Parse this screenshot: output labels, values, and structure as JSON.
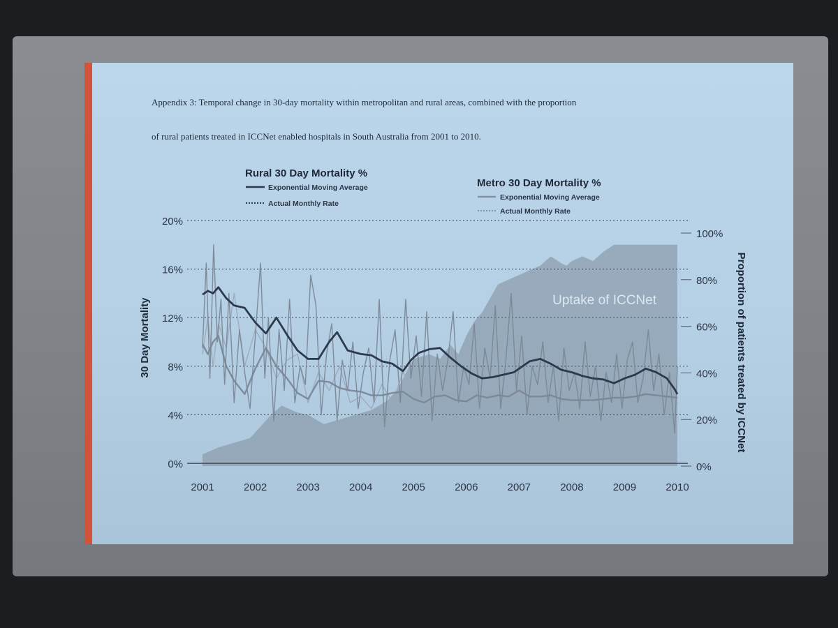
{
  "slide": {
    "caption_line1": "Appendix 3: Temporal change in 30-day mortality within metropolitan and rural areas, combined with the proportion",
    "caption_line2": "of rural patients treated in ICCNet enabled hospitals in South Australia from 2001 to 2010."
  },
  "colors": {
    "rural": "#2c3a4c",
    "metro": "#7a8796",
    "metro_light": "#9aa8b7",
    "uptake_area": "#8d9dad",
    "accent": "#d2533a",
    "slide_bg": "#b8d2e8"
  },
  "chart_data": {
    "type": "line",
    "title": "",
    "ylabel": "30 Day Mortality",
    "y2label": "Proportion of patients treated by ICCNet",
    "xlabel": "",
    "x_ticks": [
      "2001",
      "2002",
      "2003",
      "2004",
      "2005",
      "2006",
      "2007",
      "2008",
      "2009",
      "2010"
    ],
    "y_ticks": [
      "0%",
      "4%",
      "8%",
      "12%",
      "16%",
      "20%"
    ],
    "y2_ticks": [
      "0%",
      "20%",
      "40%",
      "60%",
      "80%",
      "100%"
    ],
    "ylim": [
      0,
      20
    ],
    "y2lim": [
      0,
      100
    ],
    "xlim": [
      2001.0,
      2010.0
    ],
    "grid": "dotted horizontal",
    "legend": {
      "rural_title": "Rural 30 Day Mortality %",
      "metro_title": "Metro 30 Day Mortality %",
      "ema_label": "Exponential Moving Average",
      "actual_label": "Actual Monthly Rate"
    },
    "area_label": "Uptake of ICCNet",
    "series": [
      {
        "name": "Rural Exponential Moving Average",
        "axis": "left",
        "x": [
          2001.0,
          2001.1,
          2001.2,
          2001.3,
          2001.45,
          2001.6,
          2001.8,
          2002.0,
          2002.2,
          2002.4,
          2002.6,
          2002.8,
          2003.0,
          2003.2,
          2003.4,
          2003.55,
          2003.75,
          2004.0,
          2004.2,
          2004.4,
          2004.6,
          2004.8,
          2004.95,
          2005.1,
          2005.3,
          2005.5,
          2005.7,
          2005.9,
          2006.1,
          2006.3,
          2006.5,
          2006.7,
          2006.9,
          2007.0,
          2007.2,
          2007.4,
          2007.6,
          2007.8,
          2008.0,
          2008.2,
          2008.4,
          2008.6,
          2008.8,
          2009.0,
          2009.2,
          2009.4,
          2009.6,
          2009.8,
          2009.95,
          2010.0
        ],
        "values": [
          13.9,
          14.2,
          14.0,
          14.5,
          13.6,
          13.0,
          12.8,
          11.6,
          10.7,
          12.0,
          10.6,
          9.3,
          8.6,
          8.6,
          10.0,
          10.8,
          9.3,
          9.0,
          8.9,
          8.4,
          8.2,
          7.6,
          8.5,
          9.1,
          9.4,
          9.5,
          8.7,
          8.0,
          7.4,
          7.0,
          7.1,
          7.3,
          7.5,
          7.8,
          8.4,
          8.6,
          8.2,
          7.7,
          7.5,
          7.2,
          7.0,
          6.9,
          6.6,
          7.0,
          7.3,
          7.8,
          7.5,
          7.0,
          6.1,
          5.7
        ]
      },
      {
        "name": "Rural Actual Monthly Rate",
        "axis": "left",
        "x": [
          2001.0,
          2001.07,
          2001.14,
          2001.21,
          2001.28,
          2001.35,
          2001.42,
          2001.5,
          2001.6,
          2001.7,
          2001.8,
          2001.9,
          2002.0,
          2002.1,
          2002.18,
          2002.25,
          2002.35,
          2002.45,
          2002.55,
          2002.65,
          2002.75,
          2002.85,
          2002.95,
          2003.05,
          2003.15,
          2003.25,
          2003.35,
          2003.45,
          2003.55,
          2003.65,
          2003.75,
          2003.85,
          2003.95,
          2004.05,
          2004.15,
          2004.25,
          2004.35,
          2004.45,
          2004.55,
          2004.65,
          2004.75,
          2004.85,
          2004.95,
          2005.05,
          2005.15,
          2005.25,
          2005.35,
          2005.45,
          2005.55,
          2005.65,
          2005.75,
          2005.85,
          2005.95,
          2006.05,
          2006.15,
          2006.25,
          2006.35,
          2006.45,
          2006.55,
          2006.65,
          2006.75,
          2006.85,
          2006.95,
          2007.05,
          2007.15,
          2007.25,
          2007.35,
          2007.45,
          2007.55,
          2007.65,
          2007.75,
          2007.85,
          2007.95,
          2008.05,
          2008.15,
          2008.25,
          2008.35,
          2008.45,
          2008.55,
          2008.65,
          2008.75,
          2008.85,
          2008.95,
          2009.05,
          2009.15,
          2009.25,
          2009.35,
          2009.45,
          2009.55,
          2009.65,
          2009.75,
          2009.85,
          2009.95,
          2010.0
        ],
        "values": [
          9.5,
          16.5,
          7.0,
          18.0,
          10.0,
          13.5,
          6.5,
          14.0,
          5.0,
          11.0,
          7.5,
          4.5,
          10.5,
          16.5,
          7.0,
          12.0,
          3.5,
          11.0,
          6.0,
          13.5,
          5.0,
          8.0,
          6.5,
          15.5,
          13.0,
          4.0,
          9.0,
          11.5,
          3.5,
          8.5,
          6.0,
          10.0,
          4.5,
          7.5,
          9.5,
          5.0,
          13.5,
          3.0,
          8.5,
          11.0,
          5.0,
          13.5,
          7.0,
          10.5,
          5.5,
          12.5,
          3.5,
          9.0,
          6.0,
          8.5,
          12.5,
          5.0,
          8.0,
          6.5,
          11.5,
          4.5,
          9.5,
          7.0,
          13.0,
          4.5,
          8.5,
          14.0,
          6.0,
          10.5,
          4.0,
          8.0,
          6.5,
          10.0,
          5.0,
          8.0,
          3.5,
          9.5,
          6.0,
          7.5,
          4.5,
          10.0,
          5.5,
          8.0,
          3.5,
          7.5,
          5.0,
          9.0,
          4.5,
          8.5,
          10.0,
          5.0,
          7.0,
          11.0,
          6.0,
          9.0,
          4.0,
          7.5,
          2.5,
          8.0
        ]
      },
      {
        "name": "Metro Exponential Moving Average",
        "axis": "left",
        "x": [
          2001.0,
          2001.1,
          2001.2,
          2001.3,
          2001.45,
          2001.6,
          2001.8,
          2002.0,
          2002.2,
          2002.4,
          2002.6,
          2002.8,
          2003.0,
          2003.2,
          2003.4,
          2003.6,
          2003.8,
          2004.0,
          2004.2,
          2004.4,
          2004.6,
          2004.8,
          2005.0,
          2005.2,
          2005.4,
          2005.6,
          2005.8,
          2006.0,
          2006.2,
          2006.4,
          2006.6,
          2006.8,
          2007.0,
          2007.2,
          2007.4,
          2007.6,
          2007.8,
          2008.0,
          2008.2,
          2008.4,
          2008.6,
          2008.8,
          2009.0,
          2009.2,
          2009.4,
          2009.6,
          2009.8,
          2010.0
        ],
        "values": [
          9.8,
          9.0,
          10.0,
          10.5,
          8.0,
          6.8,
          5.7,
          7.8,
          9.5,
          8.0,
          7.0,
          5.8,
          5.3,
          6.8,
          6.7,
          6.2,
          6.0,
          5.9,
          5.6,
          5.6,
          5.8,
          5.9,
          5.3,
          5.0,
          5.5,
          5.6,
          5.2,
          5.1,
          5.6,
          5.4,
          5.6,
          5.5,
          6.0,
          5.5,
          5.5,
          5.6,
          5.3,
          5.2,
          5.2,
          5.2,
          5.3,
          5.4,
          5.4,
          5.5,
          5.7,
          5.6,
          5.5,
          5.4
        ]
      },
      {
        "name": "Metro Actual Monthly Rate",
        "axis": "left",
        "x": [
          2001.0,
          2001.1,
          2001.2,
          2001.3,
          2001.45,
          2001.6,
          2001.8,
          2002.0,
          2002.2,
          2002.4,
          2002.6,
          2002.8,
          2003.0,
          2003.2,
          2003.4,
          2003.6,
          2003.8,
          2004.0,
          2004.2,
          2004.4,
          2004.6,
          2004.8,
          2005.0,
          2005.2,
          2005.4,
          2005.6,
          2005.8,
          2006.0,
          2006.2,
          2006.4,
          2006.6,
          2006.8,
          2007.0,
          2007.2,
          2007.4,
          2007.6,
          2007.8,
          2008.0,
          2008.2,
          2008.4,
          2008.6,
          2008.8,
          2009.0,
          2009.2,
          2009.4,
          2009.6,
          2009.8,
          2010.0
        ],
        "values": [
          9.0,
          12.0,
          8.0,
          11.5,
          9.5,
          14.0,
          8.0,
          11.0,
          9.5,
          7.0,
          8.5,
          9.0,
          5.0,
          7.5,
          6.0,
          8.0,
          5.0,
          5.5,
          4.5,
          6.5,
          5.0,
          7.5,
          6.0,
          4.0,
          5.5,
          7.0,
          4.5,
          5.0,
          6.0,
          4.5,
          7.0,
          5.0,
          6.5,
          4.5,
          6.0,
          5.0,
          5.5,
          4.5,
          5.0,
          6.0,
          4.5,
          5.5,
          4.5,
          6.0,
          5.0,
          4.5,
          4.0,
          5.0
        ]
      },
      {
        "name": "Uptake of ICCNet",
        "axis": "right",
        "x": [
          2001.0,
          2001.3,
          2001.6,
          2001.9,
          2002.1,
          2002.3,
          2002.5,
          2002.8,
          2003.0,
          2003.3,
          2003.6,
          2003.9,
          2004.2,
          2004.5,
          2004.7,
          2004.9,
          2005.0,
          2005.3,
          2005.5,
          2005.7,
          2005.85,
          2006.0,
          2006.15,
          2006.3,
          2006.45,
          2006.6,
          2006.8,
          2007.0,
          2007.2,
          2007.4,
          2007.6,
          2007.8,
          2007.9,
          2008.0,
          2008.2,
          2008.4,
          2008.6,
          2008.8,
          2009.0,
          2009.3,
          2009.6,
          2009.85,
          2010.0
        ],
        "values": [
          5,
          8,
          10,
          12,
          17,
          22,
          26,
          23,
          22,
          18,
          20,
          22,
          24,
          28,
          33,
          42,
          46,
          48,
          46,
          52,
          48,
          56,
          62,
          66,
          72,
          78,
          80,
          82,
          84,
          86,
          90,
          87,
          86,
          88,
          90,
          88,
          92,
          95,
          95,
          95,
          95,
          95,
          95
        ]
      }
    ]
  }
}
